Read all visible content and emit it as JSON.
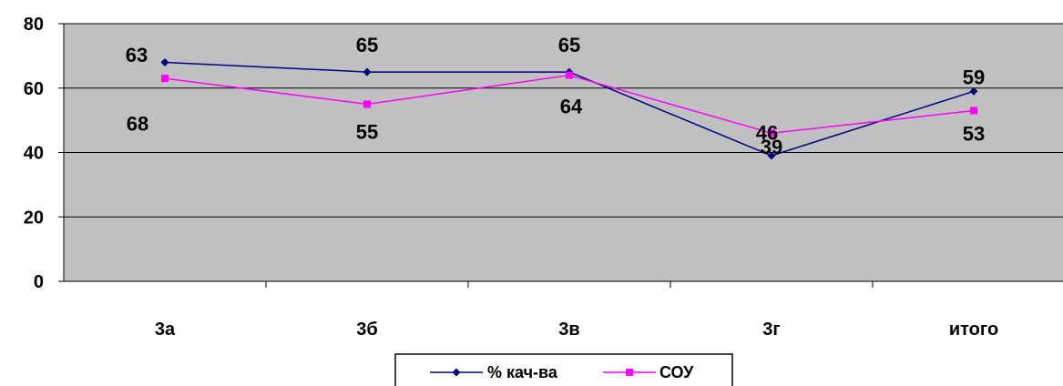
{
  "chart_data": {
    "type": "line",
    "categories": [
      "3а",
      "3б",
      "3в",
      "3г",
      "итого"
    ],
    "series": [
      {
        "name": "% кач-ва",
        "values": [
          68,
          65,
          65,
          39,
          59
        ],
        "color": "#000080",
        "marker": "diamond"
      },
      {
        "name": "СОУ",
        "values": [
          63,
          55,
          64,
          46,
          53
        ],
        "color": "#ff00ff",
        "marker": "square"
      }
    ],
    "ylim": [
      0,
      80
    ],
    "yticks": [
      0,
      20,
      40,
      60,
      80
    ],
    "plot_background": "#c0c0c0",
    "grid": true,
    "legend": "bottom-center"
  }
}
